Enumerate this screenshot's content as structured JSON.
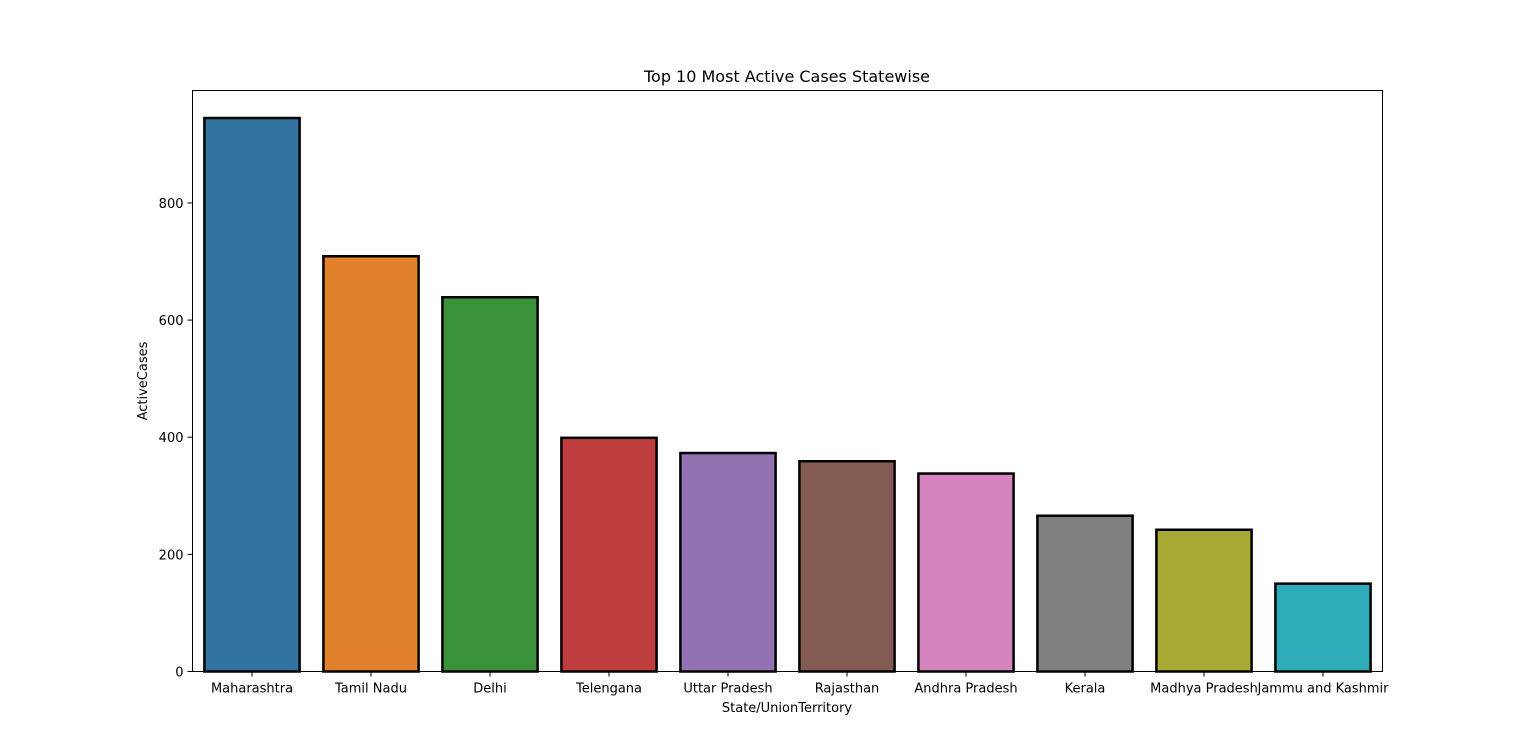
{
  "chart_data": {
    "type": "bar",
    "title": "Top 10 Most Active Cases Statewise",
    "xlabel": "State/UnionTerritory",
    "ylabel": "ActiveCases",
    "categories": [
      "Maharashtra",
      "Tamil Nadu",
      "Delhi",
      "Telengana",
      "Uttar Pradesh",
      "Rajasthan",
      "Andhra Pradesh",
      "Kerala",
      "Madhya Pradesh",
      "Jammu and Kashmir"
    ],
    "values": [
      945,
      709,
      639,
      399,
      373,
      359,
      338,
      266,
      242,
      150
    ],
    "colors": [
      "#3274a1",
      "#e1812c",
      "#3a923a",
      "#c03d3e",
      "#9372b2",
      "#845b53",
      "#d684bd",
      "#7f7f7f",
      "#a9aa35",
      "#2eabb8"
    ],
    "ylim": [
      0,
      992
    ],
    "yticks": [
      0,
      200,
      400,
      600,
      800
    ],
    "grid": false,
    "legend": "none"
  }
}
